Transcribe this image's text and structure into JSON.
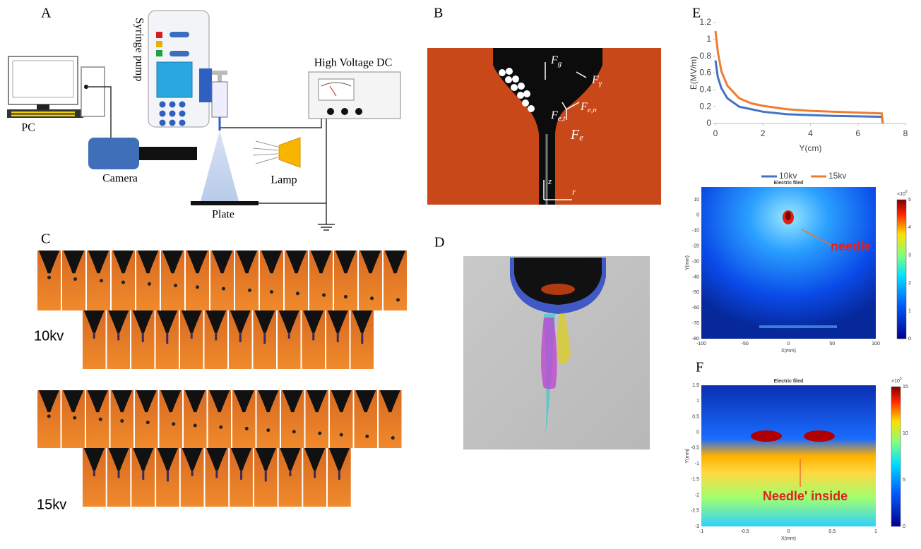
{
  "panels": {
    "a": {
      "label": "A",
      "pump": "Syringe pump",
      "hv": "High Voltage DC",
      "pc": "PC",
      "camera": "Camera",
      "lamp": "Lamp",
      "plate": "Plate"
    },
    "b": {
      "label": "B",
      "forces": [
        {
          "main": "F",
          "sub": "g"
        },
        {
          "main": "F",
          "sub": "γ"
        },
        {
          "main": "F",
          "sub": "e,n"
        },
        {
          "main": "F",
          "sub": "e,t"
        },
        {
          "main": "F",
          "sub": "e"
        }
      ],
      "z": "z",
      "r": "r"
    },
    "c": {
      "label": "C",
      "low": "10kv",
      "high": "15kv"
    },
    "d": {
      "label": "D"
    },
    "e": {
      "label": "E",
      "map": {
        "title": "Electric filed",
        "xlabel": "X(mm)",
        "ylabel": "Y(mm)",
        "xticks": [
          -100,
          -50,
          0,
          50,
          100
        ],
        "yticks": [
          10,
          0,
          -10,
          -20,
          -30,
          -40,
          -50,
          -60,
          -70,
          -80
        ],
        "cticks": [
          0,
          1,
          2,
          3,
          4,
          5
        ],
        "cscale": {
          "base": "×10",
          "exp": "6"
        },
        "note": "needle"
      }
    },
    "f": {
      "label": "F",
      "map": {
        "title": "Electric filed",
        "xlabel": "X(mm)",
        "ylabel": "Y(mm)",
        "xticks": [
          -1,
          -0.5,
          0,
          0.5,
          1
        ],
        "yticks": [
          1.5,
          1,
          0.5,
          0,
          -0.5,
          -1,
          -1.5,
          -2,
          -2.5,
          -3
        ],
        "cticks": [
          0,
          5,
          10,
          15
        ],
        "cscale": {
          "base": "×10",
          "exp": "5"
        },
        "note": "Needle' inside"
      }
    }
  },
  "chart_data": {
    "type": "line",
    "xlabel": "Y(cm)",
    "ylabel": "E(MV/m)",
    "x": [
      0,
      0.1,
      0.25,
      0.5,
      1,
      1.5,
      2,
      3,
      4,
      5,
      6,
      7,
      7.05
    ],
    "series": [
      {
        "name": "10kv",
        "color": "#4472c4",
        "values": [
          0.75,
          0.55,
          0.42,
          0.3,
          0.2,
          0.17,
          0.14,
          0.11,
          0.1,
          0.09,
          0.085,
          0.08,
          0
        ]
      },
      {
        "name": "15kv",
        "color": "#ed7d31",
        "values": [
          1.1,
          0.85,
          0.62,
          0.45,
          0.3,
          0.24,
          0.21,
          0.17,
          0.15,
          0.14,
          0.13,
          0.12,
          0
        ]
      }
    ],
    "xlim": [
      0,
      8
    ],
    "xticks": [
      0,
      2,
      4,
      6,
      8
    ],
    "ylim": [
      0,
      1.2
    ],
    "yticks": [
      0,
      0.2,
      0.4,
      0.6,
      0.8,
      1,
      1.2
    ],
    "legend": "bottom"
  }
}
